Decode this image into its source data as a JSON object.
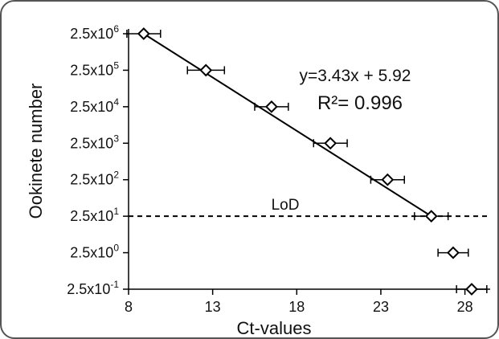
{
  "chart_data": {
    "type": "scatter",
    "xlabel": "Ct-values",
    "ylabel": "Ookinete number",
    "xlim": [
      8,
      29.5
    ],
    "x_ticks": [
      8,
      13,
      18,
      23,
      28
    ],
    "y_scale": "log",
    "y_ticks": [
      {
        "mantissa": "2.5x10",
        "exp": "-1"
      },
      {
        "mantissa": "2.5x10",
        "exp": "0"
      },
      {
        "mantissa": "2.5x10",
        "exp": "1"
      },
      {
        "mantissa": "2.5x10",
        "exp": "2"
      },
      {
        "mantissa": "2.5x10",
        "exp": "3"
      },
      {
        "mantissa": "2.5x10",
        "exp": "4"
      },
      {
        "mantissa": "2.5x10",
        "exp": "5"
      },
      {
        "mantissa": "2.5x10",
        "exp": "6"
      }
    ],
    "points": [
      {
        "x": 8.9,
        "y": 2500000,
        "xerr": 1.0
      },
      {
        "x": 12.6,
        "y": 250000,
        "xerr": 1.1
      },
      {
        "x": 16.5,
        "y": 25000,
        "xerr": 1.0
      },
      {
        "x": 20.0,
        "y": 2500,
        "xerr": 1.0
      },
      {
        "x": 23.4,
        "y": 250,
        "xerr": 1.0
      },
      {
        "x": 26.0,
        "y": 25,
        "xerr": 1.0
      },
      {
        "x": 27.3,
        "y": 2.5,
        "xerr": 0.9
      },
      {
        "x": 28.4,
        "y": 0.25,
        "xerr": 0.9
      }
    ],
    "fit_line": {
      "x_from": 8.9,
      "x_to": 26.0
    },
    "equation": "y=3.43x + 5.92",
    "r_squared": "R²= 0.996",
    "lod": {
      "label": "LoD",
      "y": 25
    },
    "colors": {
      "marker": "#000000",
      "line": "#000000",
      "frame": "#555555"
    }
  }
}
